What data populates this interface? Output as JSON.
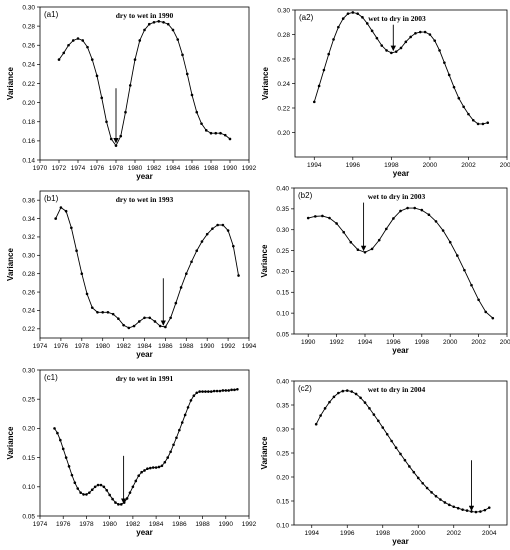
{
  "chart_data": [
    {
      "id": "a1",
      "panel_label": "(a1)",
      "type": "line",
      "title": "dry to wet  in 1990",
      "xlabel": "year",
      "ylabel": "Variance",
      "xlim": [
        1970,
        1992
      ],
      "ylim": [
        0.14,
        0.3
      ],
      "xticks": [
        1970,
        1972,
        1974,
        1976,
        1978,
        1980,
        1982,
        1984,
        1986,
        1988,
        1990,
        1992
      ],
      "yticks": [
        0.14,
        0.16,
        0.18,
        0.2,
        0.22,
        0.24,
        0.26,
        0.28,
        0.3
      ],
      "tick_decimals": 2,
      "arrow": {
        "x": 1978.0,
        "y_from": 0.215,
        "y_to": 0.158
      },
      "series": [
        {
          "x": [
            1972.0,
            1972.5,
            1973.0,
            1973.5,
            1974.0,
            1974.5,
            1975.0,
            1975.5,
            1976.0,
            1976.5,
            1977.0,
            1977.5,
            1978.0,
            1978.5,
            1979.0,
            1979.5,
            1980.0,
            1980.5,
            1981.0,
            1981.5,
            1982.0,
            1982.5,
            1983.0,
            1983.5,
            1984.0,
            1984.5,
            1985.0,
            1985.5,
            1986.0,
            1986.5,
            1987.0,
            1987.5,
            1988.0,
            1988.5,
            1989.0,
            1989.5,
            1990.0
          ],
          "y": [
            0.245,
            0.252,
            0.26,
            0.265,
            0.267,
            0.265,
            0.258,
            0.245,
            0.228,
            0.205,
            0.18,
            0.162,
            0.155,
            0.165,
            0.19,
            0.218,
            0.245,
            0.265,
            0.276,
            0.282,
            0.284,
            0.285,
            0.284,
            0.282,
            0.276,
            0.266,
            0.25,
            0.23,
            0.208,
            0.19,
            0.178,
            0.171,
            0.168,
            0.168,
            0.168,
            0.166,
            0.162
          ]
        }
      ]
    },
    {
      "id": "a2",
      "panel_label": "(a2)",
      "type": "line",
      "title": "wet to dry in 2003",
      "xlabel": "year",
      "ylabel": "Variance",
      "xlim": [
        1993,
        2004
      ],
      "ylim": [
        0.18,
        0.3
      ],
      "xticks": [
        1994,
        1996,
        1998,
        2000,
        2002,
        2004
      ],
      "yticks": [
        0.2,
        0.22,
        0.24,
        0.26,
        0.28,
        0.3
      ],
      "tick_decimals": 2,
      "arrow": {
        "x": 1998.1,
        "y_from": 0.288,
        "y_to": 0.267
      },
      "series": [
        {
          "x": [
            1994.0,
            1994.25,
            1994.5,
            1994.75,
            1995.0,
            1995.25,
            1995.5,
            1995.75,
            1996.0,
            1996.25,
            1996.5,
            1996.75,
            1997.0,
            1997.25,
            1997.5,
            1997.75,
            1998.0,
            1998.25,
            1998.5,
            1998.75,
            1999.0,
            1999.25,
            1999.5,
            1999.75,
            2000.0,
            2000.25,
            2000.5,
            2000.75,
            2001.0,
            2001.25,
            2001.5,
            2001.75,
            2002.0,
            2002.25,
            2002.5,
            2002.75,
            2003.0
          ],
          "y": [
            0.225,
            0.238,
            0.251,
            0.264,
            0.276,
            0.286,
            0.293,
            0.297,
            0.298,
            0.297,
            0.294,
            0.289,
            0.283,
            0.277,
            0.271,
            0.267,
            0.265,
            0.266,
            0.269,
            0.274,
            0.278,
            0.281,
            0.282,
            0.282,
            0.28,
            0.275,
            0.267,
            0.257,
            0.247,
            0.237,
            0.228,
            0.221,
            0.215,
            0.21,
            0.207,
            0.207,
            0.208
          ]
        }
      ]
    },
    {
      "id": "b1",
      "panel_label": "(b1)",
      "type": "line",
      "title": "dry to wet in 1993",
      "xlabel": "year",
      "ylabel": "Variance",
      "xlim": [
        1974,
        1994
      ],
      "ylim": [
        0.21,
        0.37
      ],
      "xticks": [
        1974,
        1976,
        1978,
        1980,
        1982,
        1984,
        1986,
        1988,
        1990,
        1992,
        1994
      ],
      "yticks": [
        0.22,
        0.24,
        0.26,
        0.28,
        0.3,
        0.32,
        0.34,
        0.36
      ],
      "tick_decimals": 2,
      "arrow": {
        "x": 1985.8,
        "y_from": 0.275,
        "y_to": 0.224
      },
      "series": [
        {
          "x": [
            1975.5,
            1976.0,
            1976.5,
            1977.0,
            1977.5,
            1978.0,
            1978.5,
            1979.0,
            1979.5,
            1980.0,
            1980.5,
            1981.0,
            1981.5,
            1982.0,
            1982.5,
            1983.0,
            1983.5,
            1984.0,
            1984.5,
            1985.0,
            1985.5,
            1986.0,
            1986.5,
            1987.0,
            1987.5,
            1988.0,
            1988.5,
            1989.0,
            1989.5,
            1990.0,
            1990.5,
            1991.0,
            1991.5,
            1992.0,
            1992.5,
            1993.0
          ],
          "y": [
            0.34,
            0.352,
            0.348,
            0.33,
            0.305,
            0.28,
            0.258,
            0.243,
            0.238,
            0.238,
            0.238,
            0.236,
            0.231,
            0.224,
            0.221,
            0.223,
            0.228,
            0.232,
            0.232,
            0.228,
            0.223,
            0.222,
            0.232,
            0.248,
            0.265,
            0.28,
            0.293,
            0.305,
            0.315,
            0.323,
            0.329,
            0.333,
            0.333,
            0.327,
            0.31,
            0.278
          ]
        }
      ]
    },
    {
      "id": "b2",
      "panel_label": "(b2)",
      "type": "line",
      "title": "wet to dry in 2003",
      "xlabel": "year",
      "ylabel": "Variance",
      "xlim": [
        1989,
        2004
      ],
      "ylim": [
        0.05,
        0.4
      ],
      "xticks": [
        1990,
        1992,
        1994,
        1996,
        1998,
        2000,
        2002,
        2004
      ],
      "yticks": [
        0.05,
        0.1,
        0.15,
        0.2,
        0.25,
        0.3,
        0.35,
        0.4
      ],
      "tick_decimals": 2,
      "arrow": {
        "x": 1993.9,
        "y_from": 0.365,
        "y_to": 0.25
      },
      "series": [
        {
          "x": [
            1990.0,
            1990.5,
            1991.0,
            1991.5,
            1992.0,
            1992.5,
            1993.0,
            1993.5,
            1994.0,
            1994.5,
            1995.0,
            1995.5,
            1996.0,
            1996.5,
            1997.0,
            1997.5,
            1998.0,
            1998.5,
            1999.0,
            1999.5,
            2000.0,
            2000.5,
            2001.0,
            2001.5,
            2002.0,
            2002.5,
            2003.0
          ],
          "y": [
            0.328,
            0.332,
            0.333,
            0.328,
            0.315,
            0.294,
            0.27,
            0.252,
            0.246,
            0.254,
            0.275,
            0.302,
            0.327,
            0.345,
            0.352,
            0.352,
            0.347,
            0.336,
            0.32,
            0.298,
            0.27,
            0.238,
            0.203,
            0.167,
            0.132,
            0.103,
            0.088
          ]
        }
      ]
    },
    {
      "id": "c1",
      "panel_label": "(c1)",
      "type": "line",
      "title": "dry to wet  in 1991",
      "xlabel": "year",
      "ylabel": "Variance",
      "xlim": [
        1974,
        1992
      ],
      "ylim": [
        0.05,
        0.3
      ],
      "xticks": [
        1974,
        1976,
        1978,
        1980,
        1982,
        1984,
        1986,
        1988,
        1990,
        1992
      ],
      "yticks": [
        0.05,
        0.1,
        0.15,
        0.2,
        0.25,
        0.3
      ],
      "tick_decimals": 2,
      "arrow": {
        "x": 1981.2,
        "y_from": 0.153,
        "y_to": 0.072
      },
      "series": [
        {
          "x": [
            1975.25,
            1975.5,
            1975.75,
            1976.0,
            1976.25,
            1976.5,
            1976.75,
            1977.0,
            1977.25,
            1977.5,
            1977.75,
            1978.0,
            1978.25,
            1978.5,
            1978.75,
            1979.0,
            1979.25,
            1979.5,
            1979.75,
            1980.0,
            1980.25,
            1980.5,
            1980.75,
            1981.0,
            1981.25,
            1981.5,
            1981.75,
            1982.0,
            1982.25,
            1982.5,
            1982.75,
            1983.0,
            1983.25,
            1983.5,
            1983.75,
            1984.0,
            1984.25,
            1984.5,
            1984.75,
            1985.0,
            1985.25,
            1985.5,
            1985.75,
            1986.0,
            1986.25,
            1986.5,
            1986.75,
            1987.0,
            1987.25,
            1987.5,
            1987.75,
            1988.0,
            1988.25,
            1988.5,
            1988.75,
            1989.0,
            1989.25,
            1989.5,
            1989.75,
            1990.0,
            1990.25,
            1990.5,
            1990.75,
            1991.0
          ],
          "y": [
            0.2,
            0.192,
            0.18,
            0.165,
            0.15,
            0.135,
            0.12,
            0.107,
            0.097,
            0.09,
            0.087,
            0.087,
            0.09,
            0.095,
            0.1,
            0.103,
            0.103,
            0.1,
            0.094,
            0.086,
            0.079,
            0.073,
            0.07,
            0.07,
            0.073,
            0.08,
            0.09,
            0.1,
            0.11,
            0.119,
            0.125,
            0.128,
            0.131,
            0.132,
            0.133,
            0.133,
            0.134,
            0.136,
            0.142,
            0.15,
            0.16,
            0.172,
            0.184,
            0.197,
            0.21,
            0.223,
            0.236,
            0.248,
            0.256,
            0.261,
            0.263,
            0.263,
            0.263,
            0.263,
            0.263,
            0.264,
            0.264,
            0.264,
            0.265,
            0.265,
            0.265,
            0.266,
            0.266,
            0.267
          ]
        }
      ]
    },
    {
      "id": "c2",
      "panel_label": "(c2)",
      "type": "line",
      "title": "wet to dry in 2004",
      "xlabel": "year",
      "ylabel": "Variance",
      "xlim": [
        1993,
        2005
      ],
      "ylim": [
        0.1,
        0.4
      ],
      "xticks": [
        1994,
        1996,
        1998,
        2000,
        2002,
        2004
      ],
      "yticks": [
        0.1,
        0.15,
        0.2,
        0.25,
        0.3,
        0.35,
        0.4
      ],
      "tick_decimals": 2,
      "arrow": {
        "x": 2003.0,
        "y_from": 0.235,
        "y_to": 0.13
      },
      "series": [
        {
          "x": [
            1994.25,
            1994.5,
            1994.75,
            1995.0,
            1995.25,
            1995.5,
            1995.75,
            1996.0,
            1996.25,
            1996.5,
            1996.75,
            1997.0,
            1997.25,
            1997.5,
            1997.75,
            1998.0,
            1998.25,
            1998.5,
            1998.75,
            1999.0,
            1999.25,
            1999.5,
            1999.75,
            2000.0,
            2000.25,
            2000.5,
            2000.75,
            2001.0,
            2001.25,
            2001.5,
            2001.75,
            2002.0,
            2002.25,
            2002.5,
            2002.75,
            2003.0,
            2003.25,
            2003.5,
            2003.75,
            2004.0
          ],
          "y": [
            0.31,
            0.328,
            0.343,
            0.356,
            0.367,
            0.375,
            0.379,
            0.38,
            0.378,
            0.373,
            0.365,
            0.355,
            0.343,
            0.33,
            0.317,
            0.303,
            0.289,
            0.275,
            0.261,
            0.248,
            0.235,
            0.222,
            0.21,
            0.198,
            0.187,
            0.177,
            0.168,
            0.16,
            0.153,
            0.147,
            0.142,
            0.138,
            0.135,
            0.132,
            0.13,
            0.128,
            0.127,
            0.128,
            0.131,
            0.136
          ]
        }
      ]
    }
  ]
}
